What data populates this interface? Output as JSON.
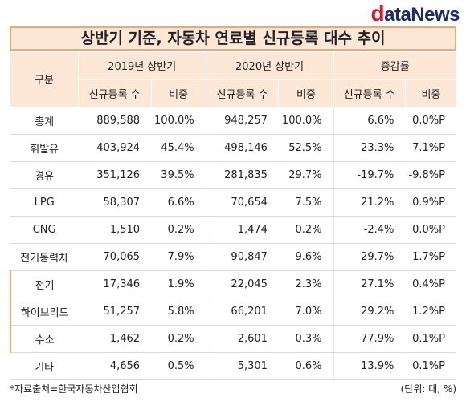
{
  "logo": {
    "d": "d",
    "rest": "ata",
    "news": "News"
  },
  "title": "상반기 기준, 자동차 연료별 신규등록 대수 추이",
  "header": {
    "category": "구분",
    "groups": [
      "2019년 상반기",
      "2020년 상반기",
      "증감률"
    ],
    "subcols": [
      "신규등록 수",
      "비중",
      "신규등록 수",
      "비중",
      "신규등록 수",
      "비중"
    ]
  },
  "rows": [
    {
      "label": "총계",
      "sub": false,
      "v": [
        "889,588",
        "100.0%",
        "948,257",
        "100.0%",
        "6.6%",
        "0.0%P"
      ]
    },
    {
      "label": "휘발유",
      "sub": false,
      "v": [
        "403,924",
        "45.4%",
        "498,146",
        "52.5%",
        "23.3%",
        "7.1%P"
      ]
    },
    {
      "label": "경유",
      "sub": false,
      "v": [
        "351,126",
        "39.5%",
        "281,835",
        "29.7%",
        "-19.7%",
        "-9.8%P"
      ]
    },
    {
      "label": "LPG",
      "sub": false,
      "v": [
        "58,307",
        "6.6%",
        "70,654",
        "7.5%",
        "21.2%",
        "0.9%P"
      ]
    },
    {
      "label": "CNG",
      "sub": false,
      "v": [
        "1,510",
        "0.2%",
        "1,474",
        "0.2%",
        "-2.4%",
        "0.0%P"
      ]
    },
    {
      "label": "전기동력차",
      "sub": false,
      "v": [
        "70,065",
        "7.9%",
        "90,847",
        "9.6%",
        "29.7%",
        "1.7%P"
      ]
    },
    {
      "label": "전기",
      "sub": true,
      "v": [
        "17,346",
        "1.9%",
        "22,045",
        "2.3%",
        "27.1%",
        "0.4%P"
      ]
    },
    {
      "label": "하이브리드",
      "sub": true,
      "v": [
        "51,257",
        "5.8%",
        "66,201",
        "7.0%",
        "29.2%",
        "1.2%P"
      ]
    },
    {
      "label": "수소",
      "sub": true,
      "v": [
        "1,462",
        "0.2%",
        "2,601",
        "0.3%",
        "77.9%",
        "0.1%P"
      ]
    },
    {
      "label": "기타",
      "sub": false,
      "v": [
        "4,656",
        "0.5%",
        "5,301",
        "0.6%",
        "13.9%",
        "0.1%P"
      ]
    }
  ],
  "footer": {
    "source": "*자료출처=한국자동차산업협회",
    "unit": "(단위: 대, %)"
  }
}
